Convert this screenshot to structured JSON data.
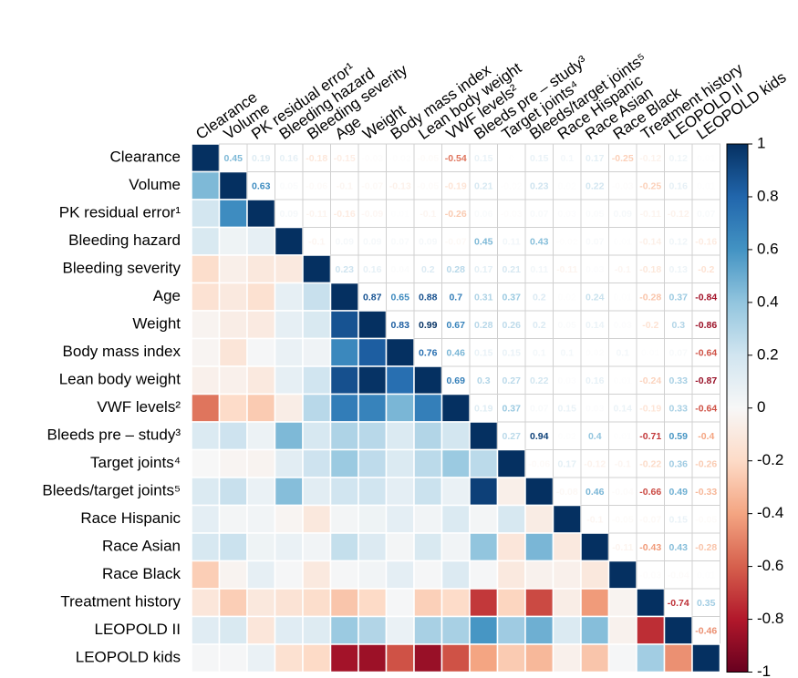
{
  "chart_data": {
    "type": "heatmap",
    "labels": [
      "Clearance",
      "Volume",
      "PK residual error¹",
      "Bleeding hazard",
      "Bleeding severity",
      "Age",
      "Weight",
      "Body mass index",
      "Lean body weight",
      "VWF levels²",
      "Bleeds pre – study³",
      "Target joints⁴",
      "Bleeds/target joints⁵",
      "Race Hispanic",
      "Race Asian",
      "Race Black",
      "Treatment history",
      "LEOPOLD II",
      "LEOPOLD kids"
    ],
    "values": [
      [
        1,
        0.45,
        0.19,
        0.16,
        -0.18,
        -0.15,
        -0.03,
        -0.02,
        -0.05,
        -0.54,
        0.15,
        0,
        0.15,
        0.1,
        0.17,
        -0.25,
        -0.12,
        0.12,
        0.01
      ],
      [
        1,
        0.63,
        0.05,
        -0.06,
        -0.1,
        -0.07,
        -0.13,
        -0.05,
        -0.19,
        0.21,
        -0.02,
        0.23,
        0.02,
        0.22,
        -0.03,
        -0.25,
        0.16,
        0.01
      ],
      [
        1,
        0.09,
        -0.11,
        -0.16,
        -0.09,
        0.01,
        -0.1,
        -0.26,
        0.06,
        -0.03,
        0.07,
        0.03,
        0.05,
        0.09,
        -0.11,
        -0.12,
        0.07
      ],
      [
        1,
        -0.1,
        0.09,
        0.09,
        0.07,
        0.09,
        -0.07,
        0.45,
        0.11,
        0.43,
        -0.02,
        0.07,
        0.01,
        -0.14,
        0.12,
        -0.16
      ],
      [
        1,
        0.23,
        0.16,
        0.04,
        0.2,
        0.28,
        0.17,
        0.21,
        0.11,
        -0.11,
        0.03,
        -0.1,
        -0.18,
        0.13,
        -0.2
      ],
      [
        1,
        0.87,
        0.65,
        0.88,
        0.7,
        0.31,
        0.37,
        0.2,
        0.02,
        0.24,
        0.01,
        -0.28,
        0.37,
        -0.84
      ],
      [
        1,
        0.83,
        0.99,
        0.67,
        0.28,
        0.26,
        0.2,
        0.05,
        0.14,
        0.03,
        -0.2,
        0.3,
        -0.86
      ],
      [
        1,
        0.76,
        0.46,
        0.15,
        0.15,
        0.1,
        0.1,
        0.02,
        0.1,
        0.01,
        0.07,
        -0.64
      ],
      [
        1,
        0.69,
        0.3,
        0.27,
        0.22,
        0.03,
        0.16,
        0.01,
        -0.24,
        0.33,
        -0.87
      ],
      [
        1,
        0.19,
        0.37,
        0.07,
        0.15,
        0.03,
        0.14,
        -0.19,
        0.33,
        -0.64
      ],
      [
        1,
        0.27,
        0.94,
        0.02,
        0.4,
        0.01,
        -0.71,
        0.59,
        -0.4
      ],
      [
        1,
        -0.06,
        0.17,
        -0.12,
        -0.1,
        -0.22,
        0.36,
        -0.26
      ],
      [
        1,
        -0.08,
        0.46,
        -0.04,
        -0.66,
        0.49,
        -0.33
      ],
      [
        1,
        -0.1,
        -0.05,
        -0.07,
        0.15,
        -0.05
      ],
      [
        1,
        -0.11,
        -0.43,
        0.43,
        -0.28
      ],
      [
        1,
        -0.03,
        -0.04,
        0.01
      ],
      [
        1,
        -0.74,
        0.35
      ],
      [
        1,
        -0.46
      ],
      [
        1
      ]
    ],
    "clim": [
      -1,
      1
    ],
    "colorbar_ticks": [
      1,
      0.8,
      0.6,
      0.4,
      0.2,
      0,
      -0.2,
      -0.4,
      -0.6,
      -0.8,
      -1
    ],
    "colorscale": [
      "#67001f",
      "#b2182b",
      "#d6604d",
      "#f4a582",
      "#fddbc7",
      "#f7f7f7",
      "#d1e5f0",
      "#92c5de",
      "#4393c3",
      "#2166ac",
      "#053061"
    ]
  }
}
